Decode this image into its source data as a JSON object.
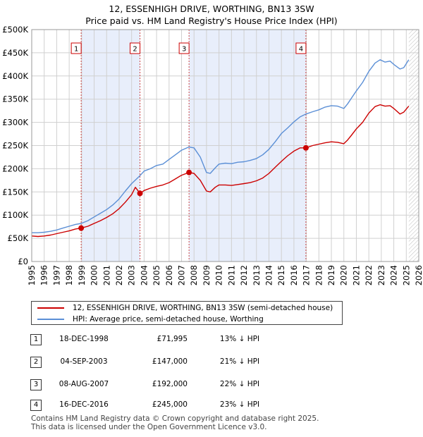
{
  "title_line1": "12, ESSENHIGH DRIVE, WORTHING, BN13 3SW",
  "title_line2": "Price paid vs. HM Land Registry's House Price Index (HPI)",
  "legend": {
    "property_label": "12, ESSENHIGH DRIVE, WORTHING, BN13 3SW (semi-detached house)",
    "hpi_label": "HPI: Average price, semi-detached house, Worthing"
  },
  "colors": {
    "property": "#cc0000",
    "hpi": "#5b8fd6",
    "shade": "#e8eefb",
    "grid": "#d0d0d0"
  },
  "sales": [
    {
      "num": "1",
      "date": "18-DEC-1998",
      "price": "£71,995",
      "hpi": "13% ↓ HPI"
    },
    {
      "num": "2",
      "date": "04-SEP-2003",
      "price": "£147,000",
      "hpi": "21% ↓ HPI"
    },
    {
      "num": "3",
      "date": "08-AUG-2007",
      "price": "£192,000",
      "hpi": "22% ↓ HPI"
    },
    {
      "num": "4",
      "date": "16-DEC-2016",
      "price": "£245,000",
      "hpi": "23% ↓ HPI"
    }
  ],
  "footer_line1": "Contains HM Land Registry data © Crown copyright and database right 2025.",
  "footer_line2": "This data is licensed under the Open Government Licence v3.0.",
  "chart_data": {
    "type": "line",
    "title": "12, ESSENHIGH DRIVE, WORTHING, BN13 3SW — Price paid vs. HM Land Registry's House Price Index (HPI)",
    "xlim": [
      1995,
      2026
    ],
    "ylim": [
      0,
      500000
    ],
    "x_ticks": [
      "1995",
      "1996",
      "1997",
      "1998",
      "1999",
      "2000",
      "2001",
      "2002",
      "2003",
      "2004",
      "2005",
      "2006",
      "2007",
      "2008",
      "2009",
      "2010",
      "2011",
      "2012",
      "2013",
      "2014",
      "2015",
      "2016",
      "2017",
      "2018",
      "2019",
      "2020",
      "2021",
      "2022",
      "2023",
      "2024",
      "2025",
      "2026"
    ],
    "y_ticks": [
      {
        "value": 0,
        "label": "£0"
      },
      {
        "value": 50000,
        "label": "£50K"
      },
      {
        "value": 100000,
        "label": "£100K"
      },
      {
        "value": 150000,
        "label": "£150K"
      },
      {
        "value": 200000,
        "label": "£200K"
      },
      {
        "value": 250000,
        "label": "£250K"
      },
      {
        "value": 300000,
        "label": "£300K"
      },
      {
        "value": 350000,
        "label": "£350K"
      },
      {
        "value": 400000,
        "label": "£400K"
      },
      {
        "value": 450000,
        "label": "£450K"
      },
      {
        "value": 500000,
        "label": "£500K"
      }
    ],
    "shaded_periods": [
      [
        1998.96,
        2003.67
      ],
      [
        2007.6,
        2016.96
      ]
    ],
    "future_hatch_from": 2025.2,
    "markers": [
      {
        "label": "1",
        "x": 1998.96,
        "y": 71995
      },
      {
        "label": "2",
        "x": 2003.67,
        "y": 147000
      },
      {
        "label": "3",
        "x": 2007.6,
        "y": 192000
      },
      {
        "label": "4",
        "x": 2016.96,
        "y": 245000
      }
    ],
    "series": [
      {
        "name": "HPI: Average price, semi-detached house, Worthing",
        "x": [
          1995,
          1995.5,
          1996,
          1996.5,
          1997,
          1997.5,
          1998,
          1998.5,
          1998.96,
          1999.5,
          2000,
          2000.5,
          2001,
          2001.5,
          2002,
          2002.5,
          2003,
          2003.67,
          2004,
          2004.5,
          2005,
          2005.5,
          2006,
          2006.5,
          2007,
          2007.6,
          2008,
          2008.5,
          2009,
          2009.3,
          2009.7,
          2010,
          2010.5,
          2011,
          2011.5,
          2012,
          2012.5,
          2013,
          2013.5,
          2014,
          2014.5,
          2015,
          2015.5,
          2016,
          2016.5,
          2016.96,
          2017.5,
          2018,
          2018.5,
          2019,
          2019.5,
          2020,
          2020.3,
          2020.6,
          2021,
          2021.5,
          2022,
          2022.5,
          2022.9,
          2023.3,
          2023.7,
          2024,
          2024.5,
          2024.8,
          2025.2
        ],
        "values": [
          62000,
          62000,
          63000,
          65000,
          68000,
          72000,
          76000,
          80000,
          82000,
          88000,
          96000,
          104000,
          112000,
          122000,
          135000,
          152000,
          168000,
          185000,
          195000,
          200000,
          207000,
          210000,
          220000,
          230000,
          240000,
          247000,
          245000,
          225000,
          192000,
          190000,
          202000,
          210000,
          212000,
          211000,
          214000,
          215000,
          218000,
          222000,
          230000,
          242000,
          258000,
          276000,
          288000,
          301000,
          312000,
          318000,
          323000,
          327000,
          333000,
          336000,
          335000,
          330000,
          340000,
          352000,
          368000,
          386000,
          410000,
          428000,
          435000,
          430000,
          432000,
          425000,
          415000,
          418000,
          435000
        ]
      },
      {
        "name": "12, ESSENHIGH DRIVE, WORTHING, BN13 3SW (semi-detached house)",
        "x": [
          1995,
          1995.5,
          1996,
          1996.5,
          1997,
          1997.5,
          1998,
          1998.5,
          1998.96,
          1999.5,
          2000,
          2000.5,
          2001,
          2001.5,
          2002,
          2002.5,
          2003,
          2003.3,
          2003.67,
          2004,
          2004.5,
          2005,
          2005.5,
          2006,
          2006.5,
          2007,
          2007.6,
          2008,
          2008.5,
          2009,
          2009.3,
          2009.7,
          2010,
          2010.5,
          2011,
          2011.5,
          2012,
          2012.5,
          2013,
          2013.5,
          2014,
          2014.5,
          2015,
          2015.5,
          2016,
          2016.5,
          2016.96,
          2017.5,
          2018,
          2018.5,
          2019,
          2019.5,
          2020,
          2020.3,
          2020.6,
          2021,
          2021.5,
          2022,
          2022.5,
          2022.9,
          2023.3,
          2023.7,
          2024,
          2024.5,
          2024.8,
          2025.2
        ],
        "values": [
          55000,
          54000,
          55000,
          57000,
          60000,
          63000,
          66000,
          70000,
          71995,
          76000,
          82000,
          88000,
          95000,
          103000,
          114000,
          128000,
          144000,
          160000,
          147000,
          153000,
          158000,
          162000,
          165000,
          170000,
          178000,
          186000,
          192000,
          190000,
          175000,
          152000,
          150000,
          160000,
          165000,
          165000,
          164000,
          166000,
          168000,
          170000,
          174000,
          180000,
          190000,
          203000,
          216000,
          228000,
          238000,
          245000,
          245000,
          250000,
          253000,
          256000,
          258000,
          257000,
          254000,
          262000,
          272000,
          286000,
          300000,
          320000,
          334000,
          338000,
          335000,
          336000,
          330000,
          318000,
          322000,
          335000
        ]
      }
    ]
  }
}
